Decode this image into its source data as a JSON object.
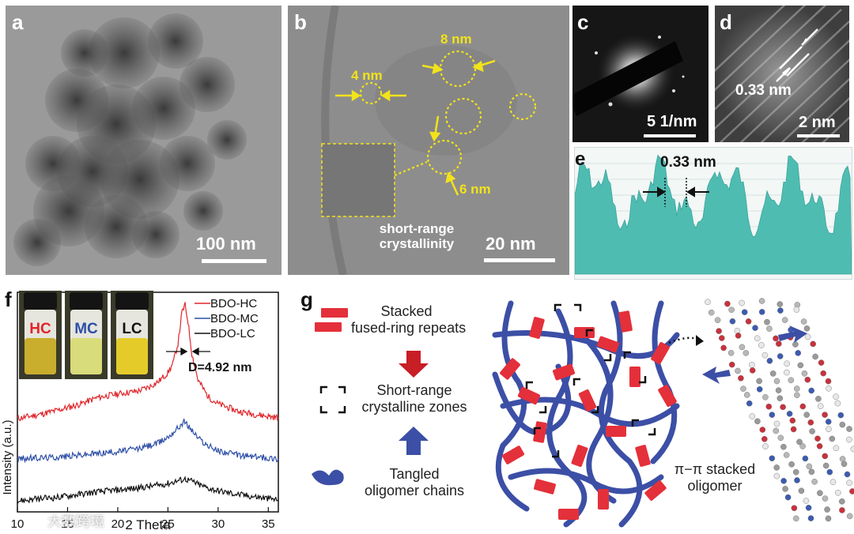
{
  "panels": {
    "a": {
      "label": "a",
      "scale": "100 nm"
    },
    "b": {
      "label": "b",
      "scale": "20 nm",
      "sizes": [
        "4 nm",
        "8 nm",
        "6 nm"
      ],
      "note_line1": "short-range",
      "note_line2": "crystallinity"
    },
    "c": {
      "label": "c",
      "scale": "5 1/nm"
    },
    "d": {
      "label": "d",
      "spacing": "0.33 nm",
      "scale": "2 nm"
    },
    "e": {
      "label": "e",
      "spacing": "0.33 nm"
    },
    "f": {
      "label": "f",
      "vials": [
        "HC",
        "MC",
        "LC"
      ],
      "annotation": "D=4.92 nm"
    },
    "g": {
      "label": "g",
      "legend": {
        "stacked_1": "Stacked",
        "stacked_2": "fused-ring repeats",
        "zones_1": "Short-range",
        "zones_2": "crystalline zones",
        "chains_1": "Tangled",
        "chains_2": "oligomer chains"
      },
      "stack_label_1": "π−π stacked",
      "stack_label_2": "oligomer"
    }
  },
  "colors": {
    "hc": "#e0262b",
    "mc": "#2e4fa8",
    "lc": "#111111",
    "teal": "#4fbcb2",
    "yellow": "#f2e31a",
    "block": "#e4303a",
    "chain": "#3c4fa6"
  },
  "watermark": "大数跨境",
  "chart_data": {
    "type": "line",
    "xlabel": "2 Theta",
    "ylabel": "Intensity (a.u.)",
    "xlim": [
      10,
      36
    ],
    "xticks": [
      10,
      15,
      20,
      25,
      30,
      35
    ],
    "yticks_shown": false,
    "legend_position": "top-right",
    "series": [
      {
        "name": "BDO-HC",
        "x": [
          10,
          12,
          14,
          16,
          18,
          20,
          22,
          23,
          24,
          25,
          25.5,
          26,
          26.4,
          26.7,
          27,
          27.4,
          28,
          29,
          30,
          32,
          34,
          36
        ],
        "y": [
          5.1,
          5.3,
          5.55,
          5.85,
          6.25,
          6.45,
          6.6,
          6.8,
          7.1,
          7.6,
          8.1,
          9.2,
          10.9,
          11.3,
          10.4,
          8.6,
          7.2,
          6.3,
          5.9,
          5.5,
          5.3,
          5.15
        ]
      },
      {
        "name": "BDO-MC",
        "x": [
          10,
          12,
          14,
          16,
          18,
          20,
          22,
          24,
          25,
          26,
          26.6,
          27.2,
          28,
          29,
          30,
          32,
          34,
          36
        ],
        "y": [
          2.9,
          2.95,
          3.0,
          3.1,
          3.2,
          3.3,
          3.45,
          3.75,
          4.1,
          4.6,
          4.95,
          4.6,
          4.05,
          3.6,
          3.35,
          3.1,
          3.0,
          2.9
        ]
      },
      {
        "name": "BDO-LC",
        "x": [
          10,
          12,
          14,
          16,
          18,
          20,
          22,
          24,
          25,
          26,
          26.7,
          27.5,
          28,
          29,
          30,
          32,
          34,
          36
        ],
        "y": [
          0.6,
          0.7,
          0.8,
          0.95,
          1.1,
          1.2,
          1.3,
          1.45,
          1.55,
          1.7,
          1.8,
          1.65,
          1.5,
          1.3,
          1.15,
          0.95,
          0.8,
          0.65
        ]
      }
    ]
  }
}
